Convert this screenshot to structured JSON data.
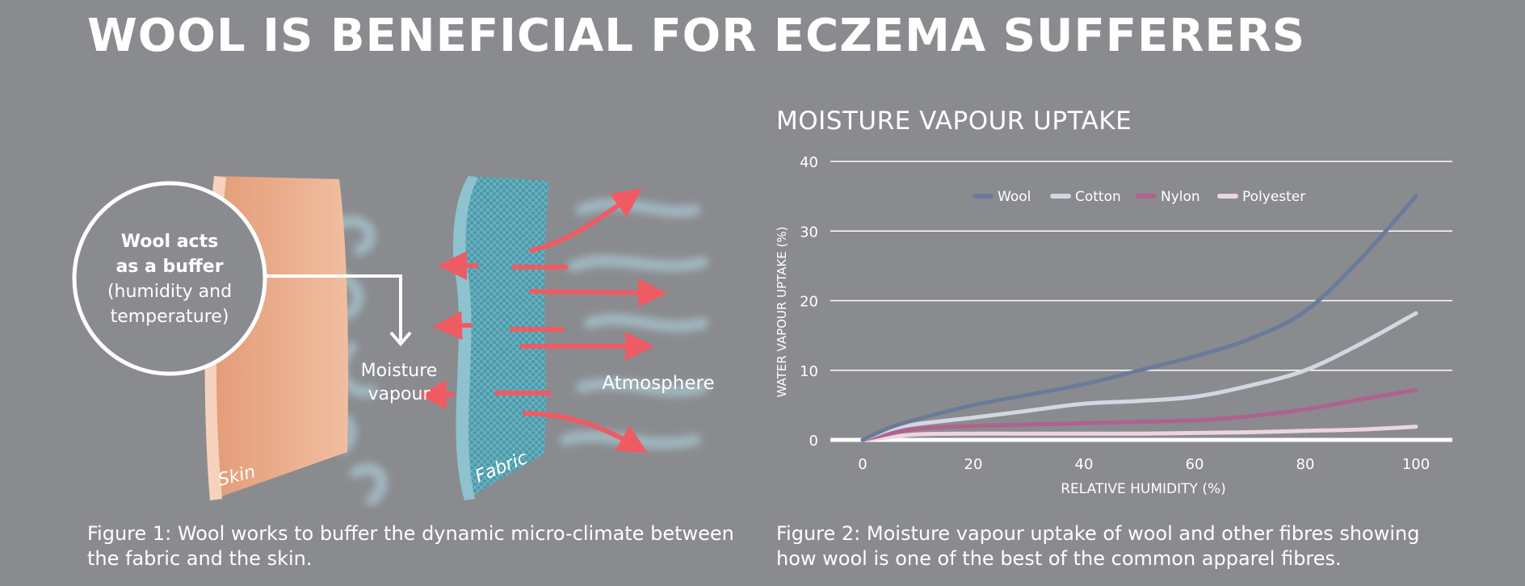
{
  "title": "WOOL IS BENEFICIAL FOR ECZEMA SUFFERERS",
  "figure1": {
    "buffer_lines": [
      "Wool acts",
      "as a buffer",
      "(humidity and",
      "temperature)"
    ],
    "moisture_lines": [
      "Moisture",
      "vapour"
    ],
    "atmosphere": "Atmosphere",
    "skin": "Skin",
    "fabric": "Fabric",
    "caption": "Figure 1: Wool works to buffer the dynamic micro-climate between the fabric and the skin."
  },
  "figure2": {
    "caption": "Figure 2: Moisture vapour uptake of wool and other fibres showing how wool is one of the best of the common apparel fibres."
  },
  "colors": {
    "background": "#8a8b8f",
    "skin": "#e9a585",
    "fabric": "#4b99aa",
    "arrow": "#ef5b63"
  },
  "chart_data": {
    "type": "line",
    "title": "MOISTURE VAPOUR UPTAKE",
    "xlabel": "RELATIVE HUMIDITY (%)",
    "ylabel": "WATER VAPOUR UPTAKE (%)",
    "xlim": [
      0,
      100
    ],
    "ylim": [
      0,
      40
    ],
    "xticks": [
      0,
      20,
      40,
      60,
      80,
      100
    ],
    "yticks": [
      0,
      10,
      20,
      30,
      40
    ],
    "grid": "horizontal",
    "legend_position": "top",
    "series": [
      {
        "name": "Wool",
        "color": "#6a7b9a",
        "x": [
          0,
          5,
          10,
          20,
          30,
          40,
          50,
          60,
          70,
          80,
          90,
          100
        ],
        "y": [
          0,
          1.8,
          3,
          5,
          6.5,
          8,
          10,
          12,
          14.5,
          18.5,
          26,
          35
        ]
      },
      {
        "name": "Cotton",
        "color": "#d3d7e2",
        "x": [
          0,
          5,
          10,
          20,
          30,
          40,
          50,
          60,
          70,
          80,
          90,
          100
        ],
        "y": [
          0,
          1.5,
          2.3,
          3.2,
          4.2,
          5.2,
          5.6,
          6.2,
          7.8,
          10,
          13.8,
          18.2
        ]
      },
      {
        "name": "Nylon",
        "color": "#b0628f",
        "x": [
          0,
          5,
          10,
          20,
          30,
          40,
          50,
          60,
          70,
          80,
          90,
          100
        ],
        "y": [
          0,
          0.9,
          1.6,
          2,
          2.2,
          2.4,
          2.6,
          2.8,
          3.4,
          4.4,
          5.8,
          7.2
        ]
      },
      {
        "name": "Polyester",
        "color": "#ecd5df",
        "x": [
          0,
          5,
          10,
          20,
          30,
          40,
          50,
          60,
          70,
          80,
          90,
          100
        ],
        "y": [
          0,
          0.4,
          0.8,
          0.9,
          0.9,
          0.9,
          0.9,
          1,
          1.1,
          1.3,
          1.5,
          1.9
        ]
      }
    ]
  }
}
